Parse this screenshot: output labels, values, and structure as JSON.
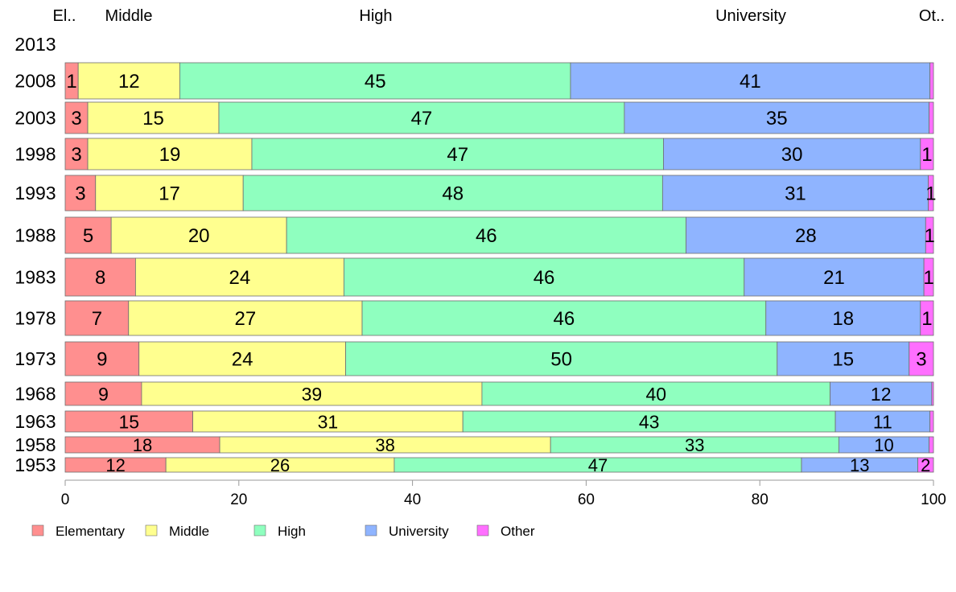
{
  "chart_data": {
    "type": "bar",
    "orientation": "horizontal",
    "stacked": true,
    "title": "",
    "xlabel": "",
    "ylabel": "",
    "xlim": [
      0,
      100
    ],
    "x_ticks": [
      0,
      20,
      40,
      60,
      80,
      100
    ],
    "grid": false,
    "legend_position": "bottom-left",
    "top_labels": [
      "El..",
      "Middle",
      "High",
      "University",
      "Ot.."
    ],
    "categories": [
      "2013",
      "2008",
      "2003",
      "1998",
      "1993",
      "1988",
      "1983",
      "1978",
      "1973",
      "1968",
      "1963",
      "1958",
      "1953"
    ],
    "series": [
      {
        "name": "Elementary",
        "color": "#ff8f8f",
        "values": [
          null,
          1.5,
          2.6,
          2.6,
          3.5,
          5.3,
          8.1,
          7.3,
          8.5,
          8.8,
          14.7,
          17.8,
          11.6
        ],
        "labels": [
          "",
          "1",
          "3",
          "3",
          "3",
          "5",
          "8",
          "7",
          "9",
          "9",
          "15",
          "18",
          "12"
        ]
      },
      {
        "name": "Middle",
        "color": "#ffff8f",
        "values": [
          null,
          11.7,
          15.1,
          18.9,
          17.0,
          20.2,
          24.0,
          26.9,
          23.8,
          39.2,
          31.1,
          38.1,
          26.3
        ],
        "labels": [
          "",
          "12",
          "15",
          "19",
          "17",
          "20",
          "24",
          "27",
          "24",
          "39",
          "31",
          "38",
          "26"
        ]
      },
      {
        "name": "High",
        "color": "#8fffbf",
        "values": [
          null,
          45.0,
          46.7,
          47.4,
          48.3,
          46.0,
          46.1,
          46.5,
          49.7,
          40.1,
          42.9,
          33.2,
          46.9
        ],
        "labels": [
          "",
          "45",
          "47",
          "47",
          "48",
          "46",
          "46",
          "46",
          "50",
          "40",
          "43",
          "33",
          "47"
        ]
      },
      {
        "name": "University",
        "color": "#8fb4ff",
        "values": [
          null,
          41.4,
          35.1,
          29.6,
          30.6,
          27.6,
          20.7,
          17.8,
          15.2,
          11.7,
          10.9,
          10.4,
          13.4
        ],
        "labels": [
          "",
          "41",
          "35",
          "30",
          "31",
          "28",
          "21",
          "18",
          "15",
          "12",
          "11",
          "10",
          "13"
        ]
      },
      {
        "name": "Other",
        "color": "#ff6fff",
        "values": [
          null,
          0.4,
          0.5,
          1.5,
          0.6,
          0.9,
          1.1,
          1.5,
          2.8,
          0.2,
          0.4,
          0.5,
          1.8
        ],
        "labels": [
          "",
          "",
          "",
          "1",
          "1",
          "1",
          "1",
          "1",
          "3",
          "",
          "",
          "",
          "2"
        ]
      }
    ]
  }
}
